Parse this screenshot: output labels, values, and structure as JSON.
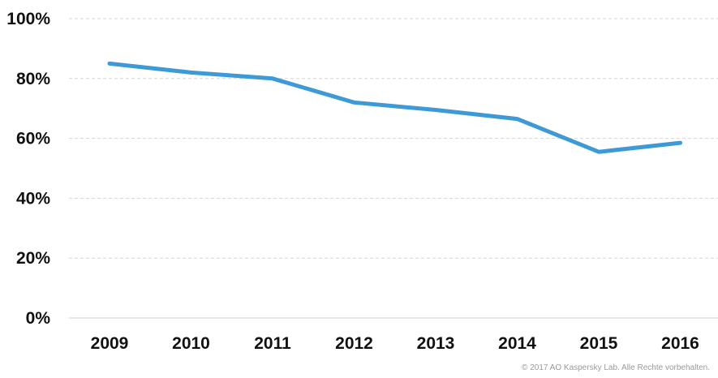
{
  "chart_data": {
    "type": "line",
    "categories": [
      "2009",
      "2010",
      "2011",
      "2012",
      "2013",
      "2014",
      "2015",
      "2016"
    ],
    "series": [
      {
        "values": [
          85,
          82,
          80,
          72,
          69.5,
          66.5,
          55.5,
          58.5
        ],
        "color": "#3d9ad6"
      }
    ],
    "yticks": [
      "0%",
      "20%",
      "40%",
      "60%",
      "80%",
      "100%"
    ],
    "ylim": [
      0,
      100
    ],
    "grid": true,
    "title": "",
    "xlabel": "",
    "ylabel": ""
  },
  "footer": {
    "copyright": "© 2017 AO Kaspersky Lab. Alle Rechte vorbehalten."
  }
}
